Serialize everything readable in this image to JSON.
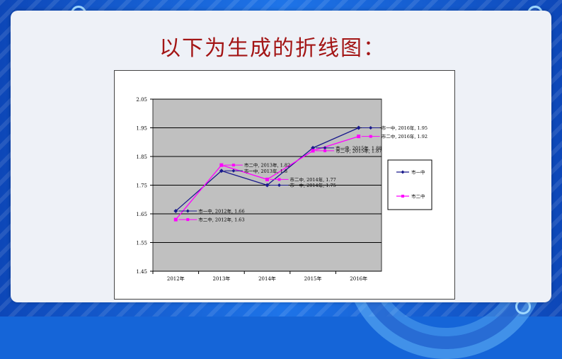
{
  "slide": {
    "title": "以下为生成的折线图："
  },
  "colors": {
    "series1": "#1a1a8c",
    "series2": "#ff00ff",
    "plot_bg": "#c0c0c0",
    "title": "#a31515"
  },
  "chart_data": {
    "type": "line",
    "categories": [
      "2012年",
      "2013年",
      "2014年",
      "2015年",
      "2016年"
    ],
    "series": [
      {
        "name": "市一中",
        "values": [
          1.66,
          1.8,
          1.75,
          1.88,
          1.95
        ],
        "marker": "diamond"
      },
      {
        "name": "市二中",
        "values": [
          1.63,
          1.82,
          1.77,
          1.87,
          1.92
        ],
        "marker": "square"
      }
    ],
    "data_labels": {
      "series1": [
        "市一中, 2012年, 1.66",
        "市一中, 2013年, 1.8",
        "市一中, 2014年, 1.75",
        "市一中, 2015年, 1.88",
        "市一中, 2016年, 1.95"
      ],
      "series2": [
        "市二中, 2012年, 1.63",
        "市二中, 2013年, 1.82",
        "市二中, 2014年, 1.77",
        "市二中, 2015年, 1.87",
        "市二中, 2016年, 1.92"
      ]
    },
    "yticks": [
      "2.05",
      "1.95",
      "1.85",
      "1.75",
      "1.65",
      "1.55",
      "1.45"
    ],
    "ylim": [
      1.45,
      2.05
    ],
    "grid": true,
    "legend_position": "right"
  }
}
